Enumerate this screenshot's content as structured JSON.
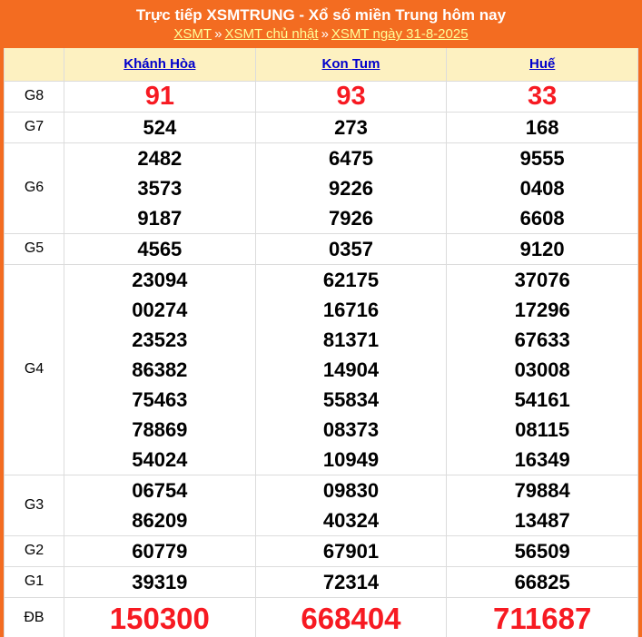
{
  "header": {
    "title": "Trực tiếp XSMTRUNG - Xổ số miền Trung hôm nay",
    "breadcrumb": {
      "separator": "»",
      "items": [
        {
          "label": "XSMT"
        },
        {
          "label": "XSMT chủ nhật"
        },
        {
          "label": "XSMT ngày 31-8-2025"
        }
      ]
    }
  },
  "colors": {
    "header_orange": "#F36C21",
    "column_header_bg": "#FDF1C1",
    "column_header_link_blue": "#0000CC",
    "breadcrumb_link_yellow": "#FFFF99",
    "highlight_red": "#F71A22",
    "table_border_gray": "#DCDCDC"
  },
  "table": {
    "columns": [
      "Khánh Hòa",
      "Kon Tum",
      "Huế"
    ],
    "rows": [
      {
        "label": "G8",
        "style": "red-large",
        "values": [
          [
            "91"
          ],
          [
            "93"
          ],
          [
            "33"
          ]
        ]
      },
      {
        "label": "G7",
        "values": [
          [
            "524"
          ],
          [
            "273"
          ],
          [
            "168"
          ]
        ]
      },
      {
        "label": "G6",
        "values": [
          [
            "2482",
            "3573",
            "9187"
          ],
          [
            "6475",
            "9226",
            "7926"
          ],
          [
            "9555",
            "0408",
            "6608"
          ]
        ]
      },
      {
        "label": "G5",
        "values": [
          [
            "4565"
          ],
          [
            "0357"
          ],
          [
            "9120"
          ]
        ]
      },
      {
        "label": "G4",
        "values": [
          [
            "23094",
            "00274",
            "23523",
            "86382",
            "75463",
            "78869",
            "54024"
          ],
          [
            "62175",
            "16716",
            "81371",
            "14904",
            "55834",
            "08373",
            "10949"
          ],
          [
            "37076",
            "17296",
            "67633",
            "03008",
            "54161",
            "08115",
            "16349"
          ]
        ]
      },
      {
        "label": "G3",
        "values": [
          [
            "06754",
            "86209"
          ],
          [
            "09830",
            "40324"
          ],
          [
            "79884",
            "13487"
          ]
        ]
      },
      {
        "label": "G2",
        "values": [
          [
            "60779"
          ],
          [
            "67901"
          ],
          [
            "56509"
          ]
        ]
      },
      {
        "label": "G1",
        "values": [
          [
            "39319"
          ],
          [
            "72314"
          ],
          [
            "66825"
          ]
        ]
      },
      {
        "label": "ĐB",
        "style": "red-xlarge",
        "values": [
          [
            "150300"
          ],
          [
            "668404"
          ],
          [
            "711687"
          ]
        ]
      }
    ]
  }
}
